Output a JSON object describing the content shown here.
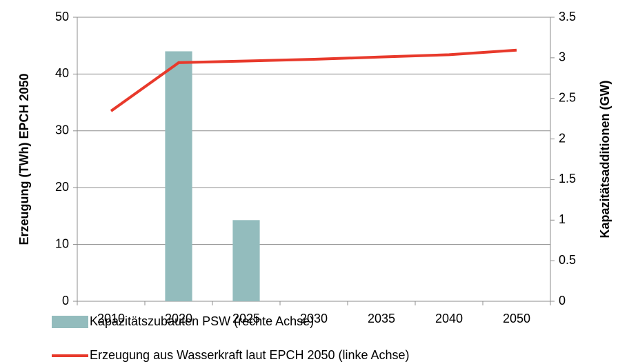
{
  "chart_data": {
    "type": "bar-line",
    "categories": [
      "2010",
      "2020",
      "2025",
      "2030",
      "2035",
      "2040",
      "2050"
    ],
    "series": [
      {
        "name": "Kapazitätszubauten PSW (rechte Achse)",
        "type": "bar",
        "axis": "y2",
        "color": "#93bcbd",
        "values": [
          0,
          3.08,
          1.0,
          0,
          0,
          0,
          0
        ]
      },
      {
        "name": "Erzeugung aus Wasserkraft laut EPCH 2050 (linke Achse)",
        "type": "line",
        "axis": "y",
        "color": "#e8392b",
        "values": [
          33.5,
          42,
          42.3,
          42.6,
          43,
          43.4,
          44.2
        ]
      }
    ],
    "ylabel": "Erzeugung (TWh) EPCH 2050",
    "y2label": "Kapazitätsadditionen (GW)",
    "ylim": [
      0,
      50
    ],
    "yticks": [
      0,
      10,
      20,
      30,
      40,
      50
    ],
    "y2lim": [
      0,
      3.5
    ],
    "y2ticks": [
      0,
      0.5,
      1,
      1.5,
      2,
      2.5,
      3,
      3.5
    ],
    "grid": true
  }
}
